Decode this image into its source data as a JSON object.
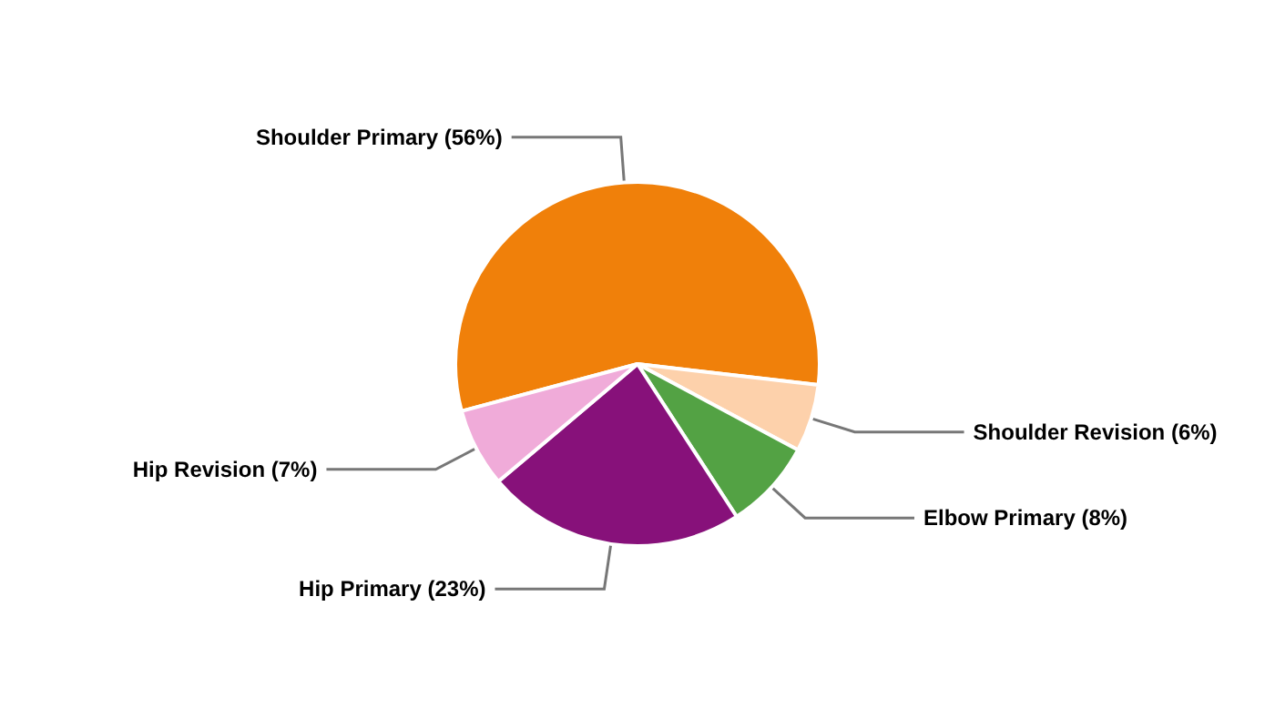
{
  "chart_data": {
    "type": "pie",
    "categories": [
      "Shoulder Primary",
      "Shoulder Revision",
      "Elbow Primary",
      "Hip Primary",
      "Hip Revision"
    ],
    "values": [
      56,
      6,
      8,
      23,
      7
    ],
    "colors": [
      "#f0800a",
      "#fdd1ab",
      "#53a244",
      "#87117a",
      "#f0abd9"
    ],
    "value_labels": [
      "(56%)",
      "(6%)",
      "(8%)",
      "(23%)",
      "(7%)"
    ],
    "legend": false
  }
}
